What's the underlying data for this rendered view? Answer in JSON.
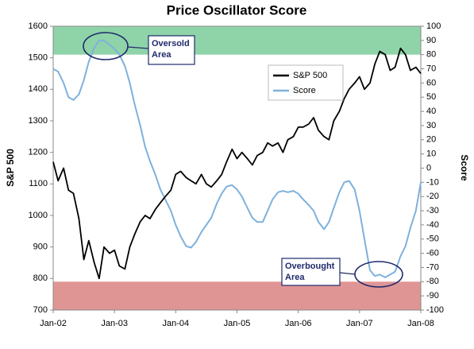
{
  "chart_data": {
    "type": "line",
    "title": "Price Oscillator Score",
    "y_label": "S&P 500",
    "y2_label": "Score",
    "x": [
      2002.0,
      2002.08,
      2002.17,
      2002.25,
      2002.33,
      2002.42,
      2002.5,
      2002.58,
      2002.67,
      2002.75,
      2002.83,
      2002.92,
      2003.0,
      2003.08,
      2003.17,
      2003.25,
      2003.33,
      2003.42,
      2003.5,
      2003.58,
      2003.67,
      2003.75,
      2003.83,
      2003.92,
      2004.0,
      2004.08,
      2004.17,
      2004.25,
      2004.33,
      2004.42,
      2004.5,
      2004.58,
      2004.67,
      2004.75,
      2004.83,
      2004.92,
      2005.0,
      2005.08,
      2005.17,
      2005.25,
      2005.33,
      2005.42,
      2005.5,
      2005.58,
      2005.67,
      2005.75,
      2005.83,
      2005.92,
      2006.0,
      2006.08,
      2006.17,
      2006.25,
      2006.33,
      2006.42,
      2006.5,
      2006.58,
      2006.67,
      2006.75,
      2006.83,
      2006.92,
      2007.0,
      2007.08,
      2007.17,
      2007.25,
      2007.33,
      2007.42,
      2007.5,
      2007.58,
      2007.67,
      2007.75,
      2007.83,
      2007.92,
      2008.0
    ],
    "series": [
      {
        "name": "S&P 500",
        "color": "#000000",
        "axis": "y",
        "values": [
          1170,
          1110,
          1150,
          1080,
          1070,
          990,
          860,
          920,
          850,
          800,
          900,
          880,
          890,
          840,
          830,
          900,
          940,
          980,
          1000,
          990,
          1020,
          1040,
          1060,
          1080,
          1130,
          1140,
          1120,
          1110,
          1100,
          1130,
          1100,
          1090,
          1110,
          1130,
          1170,
          1210,
          1180,
          1200,
          1180,
          1160,
          1190,
          1200,
          1230,
          1220,
          1230,
          1200,
          1240,
          1250,
          1280,
          1280,
          1290,
          1310,
          1270,
          1250,
          1240,
          1300,
          1330,
          1370,
          1400,
          1420,
          1440,
          1400,
          1420,
          1480,
          1520,
          1510,
          1460,
          1470,
          1530,
          1510,
          1460,
          1470,
          1450
        ]
      },
      {
        "name": "Score",
        "color": "#7eb1dc",
        "axis": "y2",
        "values": [
          70,
          68,
          60,
          50,
          48,
          52,
          62,
          75,
          85,
          90,
          90,
          87,
          84,
          80,
          72,
          60,
          45,
          30,
          15,
          5,
          -5,
          -15,
          -22,
          -30,
          -40,
          -48,
          -55,
          -56,
          -52,
          -45,
          -40,
          -35,
          -25,
          -18,
          -13,
          -12,
          -15,
          -20,
          -28,
          -35,
          -38,
          -38,
          -30,
          -22,
          -17,
          -16,
          -17,
          -16,
          -18,
          -22,
          -26,
          -30,
          -38,
          -43,
          -38,
          -28,
          -17,
          -10,
          -9,
          -15,
          -30,
          -50,
          -72,
          -76,
          -75,
          -77,
          -75,
          -73,
          -62,
          -55,
          -42,
          -30,
          -10
        ]
      }
    ],
    "xlim": [
      2002,
      2008
    ],
    "xticks": [
      {
        "value": 2002,
        "label": "Jan-02"
      },
      {
        "value": 2003,
        "label": "Jan-03"
      },
      {
        "value": 2004,
        "label": "Jan-04"
      },
      {
        "value": 2005,
        "label": "Jan-05"
      },
      {
        "value": 2006,
        "label": "Jan-06"
      },
      {
        "value": 2007,
        "label": "Jan-07"
      },
      {
        "value": 2008,
        "label": "Jan-08"
      }
    ],
    "ylim": [
      700,
      1600
    ],
    "yticks": [
      700,
      800,
      900,
      1000,
      1100,
      1200,
      1300,
      1400,
      1500,
      1600
    ],
    "y2lim": [
      -100,
      100
    ],
    "y2ticks": [
      -100,
      -90,
      -80,
      -70,
      -60,
      -50,
      -40,
      -30,
      -20,
      -10,
      0,
      10,
      20,
      30,
      40,
      50,
      60,
      70,
      80,
      90,
      100
    ],
    "bands": [
      {
        "axis": "y2",
        "from": 80,
        "to": 100,
        "color": "#8fd3a8"
      },
      {
        "axis": "y2",
        "from": -100,
        "to": -80,
        "color": "#e09595"
      }
    ],
    "annotations": [
      {
        "lines": [
          "Oversold",
          "Area"
        ]
      },
      {
        "lines": [
          "Overbought",
          "Area"
        ]
      }
    ],
    "legend": "upper center"
  }
}
